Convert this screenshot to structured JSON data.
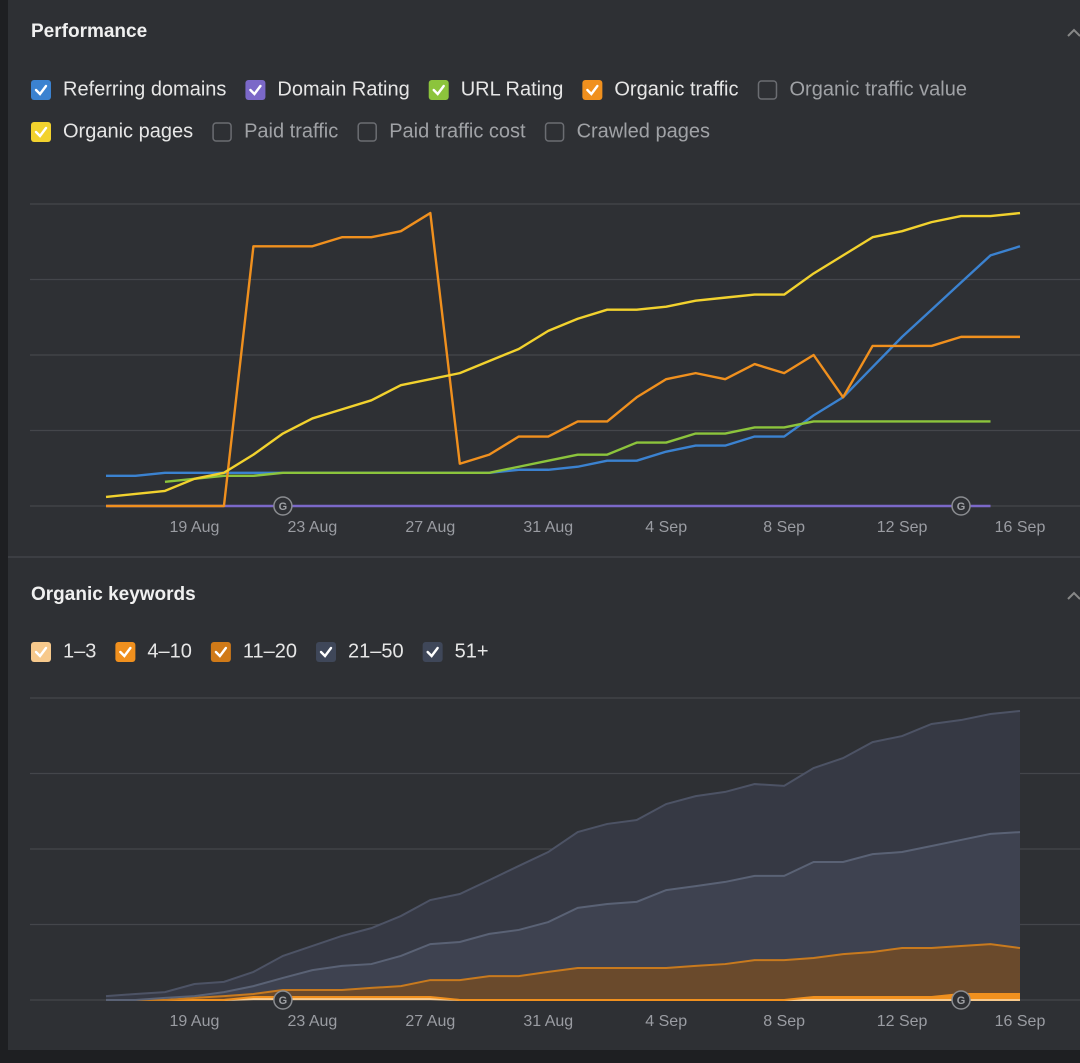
{
  "chart_data": [
    {
      "type": "line",
      "title": "Performance",
      "categories": [
        null,
        null,
        null,
        "19 Aug",
        null,
        null,
        null,
        "23 Aug",
        null,
        null,
        null,
        "27 Aug",
        null,
        null,
        null,
        "31 Aug",
        null,
        null,
        null,
        "4 Sep",
        null,
        null,
        null,
        "8 Sep",
        null,
        null,
        null,
        "12 Sep",
        null,
        null,
        null,
        "16 Sep"
      ],
      "ylim": [
        0,
        100
      ],
      "yticks": [
        0,
        25,
        50,
        75,
        100
      ],
      "grid": true,
      "ytick_labels_shown": false,
      "series": [
        {
          "name": "Referring domains",
          "color": "#3b82d0",
          "checked": true,
          "values": [
            10,
            10,
            11,
            11,
            11,
            11,
            11,
            11,
            11,
            11,
            11,
            11,
            11,
            11,
            12,
            12,
            13,
            15,
            15,
            18,
            20,
            20,
            23,
            23,
            30,
            36,
            46,
            56,
            65,
            74,
            83,
            86
          ]
        },
        {
          "name": "Domain Rating",
          "color": "#7b68c8",
          "checked": true,
          "values": [
            0,
            0,
            0,
            0,
            0,
            0,
            0,
            0,
            0,
            0,
            0,
            0,
            0,
            0,
            0,
            0,
            0,
            0,
            0,
            0,
            0,
            0,
            0,
            0,
            0,
            0,
            0,
            0,
            0,
            0,
            0,
            null
          ]
        },
        {
          "name": "URL Rating",
          "color": "#8cc43c",
          "checked": true,
          "values": [
            null,
            null,
            8,
            9,
            10,
            10,
            11,
            11,
            11,
            11,
            11,
            11,
            11,
            11,
            13,
            15,
            17,
            17,
            21,
            21,
            24,
            24,
            26,
            26,
            28,
            28,
            28,
            28,
            28,
            28,
            28,
            null
          ]
        },
        {
          "name": "Organic traffic",
          "color": "#f0901e",
          "checked": true,
          "values": [
            0,
            0,
            0,
            0,
            0,
            86,
            86,
            86,
            89,
            89,
            91,
            97,
            14,
            17,
            23,
            23,
            28,
            28,
            36,
            42,
            44,
            42,
            47,
            44,
            50,
            36,
            53,
            53,
            53,
            56,
            56,
            56
          ]
        },
        {
          "name": "Organic traffic value",
          "color": "#6b6d72",
          "checked": false
        },
        {
          "name": "Organic pages",
          "color": "#f2d22e",
          "checked": true,
          "values": [
            3,
            4,
            5,
            9,
            11,
            17,
            24,
            29,
            32,
            35,
            40,
            42,
            44,
            48,
            52,
            58,
            62,
            65,
            65,
            66,
            68,
            69,
            70,
            70,
            77,
            83,
            89,
            91,
            94,
            96,
            96,
            97
          ]
        },
        {
          "name": "Paid traffic",
          "color": "#6b6d72",
          "checked": false
        },
        {
          "name": "Paid traffic cost",
          "color": "#6b6d72",
          "checked": false
        },
        {
          "name": "Crawled pages",
          "color": "#6b6d72",
          "checked": false
        }
      ],
      "annotations": [
        {
          "category_index": 6,
          "label": "G"
        },
        {
          "category_index": 29,
          "label": "G"
        }
      ]
    },
    {
      "type": "stacked-area",
      "title": "Organic keywords",
      "categories": [
        null,
        null,
        null,
        "19 Aug",
        null,
        null,
        null,
        "23 Aug",
        null,
        null,
        null,
        "27 Aug",
        null,
        null,
        null,
        "31 Aug",
        null,
        null,
        null,
        "4 Sep",
        null,
        null,
        null,
        "8 Sep",
        null,
        null,
        null,
        "12 Sep",
        null,
        null,
        null,
        "16 Sep"
      ],
      "ylim": [
        0,
        100
      ],
      "yticks": [
        0,
        25,
        50,
        75,
        100
      ],
      "grid": true,
      "ytick_labels_shown": false,
      "series": [
        {
          "name": "1–3",
          "color": "#f7c98c",
          "line_color": "#f7c98c",
          "checked": true,
          "values": [
            0,
            0,
            0,
            0,
            0,
            0.3,
            0.3,
            0.3,
            0.3,
            0.3,
            0.3,
            0.3,
            0,
            0,
            0,
            0,
            0,
            0,
            0,
            0,
            0,
            0,
            0,
            0,
            0,
            0,
            0,
            0,
            0,
            0,
            0,
            0
          ]
        },
        {
          "name": "4–10",
          "color": "#f0901e",
          "line_color": "#f0901e",
          "checked": true,
          "values": [
            0,
            0,
            0,
            0,
            0,
            0.7,
            0.7,
            0.7,
            0.7,
            0.7,
            0.7,
            0.7,
            0,
            0,
            0,
            0,
            0,
            0,
            0,
            0,
            0,
            0,
            0,
            0,
            1,
            1,
            1,
            1,
            1,
            2,
            2,
            2
          ]
        },
        {
          "name": "11–20",
          "color": "#d07a18",
          "line_color": "#c87a1e",
          "area_color": "#6a4a2c",
          "checked": true,
          "values": [
            0,
            0,
            0,
            0.7,
            1.3,
            1,
            2.3,
            2.3,
            2.3,
            3,
            3.6,
            5.6,
            6.6,
            7.9,
            7.9,
            9.3,
            10.6,
            10.6,
            10.6,
            10.6,
            11.3,
            11.9,
            13.2,
            13.2,
            12.9,
            14.2,
            14.9,
            16.2,
            16.2,
            15.9,
            16.5,
            15.2
          ]
        },
        {
          "name": "21–50",
          "color": "#3f4759",
          "line_color": "#5a6275",
          "area_color": "#3e4250",
          "checked": true,
          "values": [
            0,
            0,
            0.7,
            0.6,
            1.3,
            2.6,
            4,
            6.6,
            8,
            7.9,
            10,
            11.9,
            12.6,
            14,
            15.3,
            16.5,
            19.9,
            21.2,
            21.9,
            25.8,
            26.4,
            27.2,
            27.9,
            27.9,
            31.8,
            30.5,
            32.4,
            31.8,
            33.8,
            35.1,
            36.5,
            38.4
          ]
        },
        {
          "name": "51+",
          "color": "#3f4759",
          "line_color": "#4d5365",
          "area_color": "#363944",
          "checked": true,
          "values": [
            1.3,
            2,
            1.9,
            4,
            3.4,
            4.7,
            7.3,
            8,
            9.9,
            11.9,
            13.2,
            14.6,
            15.9,
            17.8,
            21.2,
            23.2,
            25.1,
            26.5,
            27.1,
            28.5,
            29.8,
            29.8,
            30.4,
            29.8,
            31.1,
            34.4,
            37.1,
            38.4,
            40.4,
            39.7,
            39.7,
            40.1
          ]
        }
      ],
      "annotations": [
        {
          "category_index": 6,
          "label": "G"
        },
        {
          "category_index": 29,
          "label": "G"
        }
      ]
    }
  ]
}
